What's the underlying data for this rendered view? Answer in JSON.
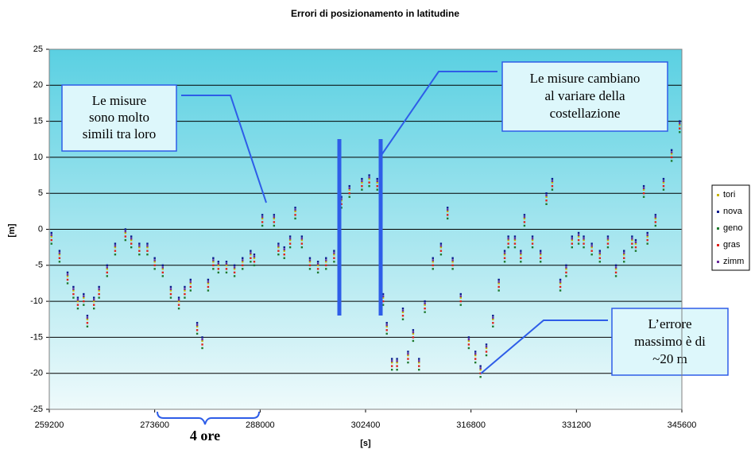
{
  "chart_data": {
    "type": "scatter",
    "title": "Errori di posizionamento in latitudine",
    "x_label": "[s]",
    "y_label": "[m]",
    "xlim": [
      259200,
      345600
    ],
    "xticks": [
      259200,
      273600,
      288000,
      302400,
      316800,
      331200,
      345600
    ],
    "ylim": [
      -25,
      25
    ],
    "yticks": [
      -25,
      -20,
      -15,
      -10,
      -5,
      0,
      5,
      10,
      15,
      20,
      25
    ],
    "grid": true,
    "legend": "right",
    "x": [
      259500,
      260600,
      261700,
      262500,
      263100,
      263900,
      264400,
      265300,
      266000,
      267100,
      268200,
      269600,
      270400,
      271500,
      272600,
      273600,
      274700,
      275800,
      276900,
      277700,
      278500,
      279400,
      280100,
      280900,
      281600,
      282300,
      283400,
      284500,
      285600,
      286700,
      287200,
      288300,
      289900,
      290500,
      291300,
      292100,
      292800,
      293700,
      294800,
      295900,
      297000,
      298100,
      299100,
      300200,
      301900,
      302900,
      304000,
      304800,
      305300,
      306000,
      306700,
      307500,
      308200,
      308900,
      309700,
      310500,
      311600,
      312700,
      313600,
      314300,
      315400,
      316500,
      317400,
      318100,
      318900,
      319800,
      320600,
      321400,
      321900,
      322800,
      323600,
      324100,
      325200,
      326300,
      327100,
      327900,
      329000,
      329800,
      330600,
      331500,
      332200,
      333300,
      334400,
      335500,
      336600,
      337700,
      338800,
      339300,
      340400,
      340900,
      342000,
      343100,
      344200,
      345300
    ],
    "series": [
      {
        "name": "tori",
        "color": "#c8b400",
        "values": [
          -1,
          -3.5,
          -6.5,
          -8.5,
          -10,
          -9.5,
          -12.5,
          -10,
          -8.5,
          -5.5,
          -2.5,
          -0.5,
          -1.5,
          -2.5,
          -2.5,
          -4.5,
          -5.5,
          -8.5,
          -10,
          -8.5,
          -7.5,
          -13.5,
          -15.5,
          -7.5,
          -4.5,
          -5,
          -5,
          -5.5,
          -4.5,
          -3.5,
          -4,
          1.5,
          1.5,
          -2.5,
          -3,
          -1.5,
          2.5,
          -1.5,
          -4.5,
          -5,
          -4.5,
          -3.5,
          4,
          5.5,
          6.5,
          7,
          6.5,
          -9.5,
          -13.5,
          -18.5,
          -18.5,
          -11.5,
          -17.5,
          -14.5,
          -18.5,
          -10.5,
          -4.5,
          -2.5,
          2.5,
          -4.5,
          -9.5,
          -15.5,
          -17.5,
          -19.5,
          -16.5,
          -12.5,
          -7.5,
          -3.5,
          -1.5,
          -1.5,
          -3.5,
          1.5,
          -1.5,
          -3.5,
          4.5,
          6.5,
          -7.5,
          -5.5,
          -1.5,
          -1,
          -1.5,
          -2.5,
          -3.5,
          -1.5,
          -5.5,
          -3.5,
          -1.5,
          -2,
          5.5,
          -1,
          1.5,
          6.5,
          10.5,
          14.5
        ]
      },
      {
        "name": "nova",
        "color": "#0a1a8c",
        "values": [
          -0.5,
          -3,
          -6,
          -8,
          -9.5,
          -9,
          -12,
          -9.5,
          -8,
          -5,
          -2,
          0,
          -1,
          -2,
          -2,
          -4,
          -5,
          -8,
          -9.5,
          -8,
          -7,
          -13,
          -15,
          -7,
          -4,
          -4.5,
          -4.5,
          -5,
          -4,
          -3,
          -3.5,
          2,
          2,
          -2,
          -2.5,
          -1,
          3,
          -1,
          -4,
          -4.5,
          -4,
          -3,
          4.5,
          6,
          7,
          7.5,
          7,
          -9,
          -13,
          -18,
          -18,
          -11,
          -17,
          -14,
          -18,
          -10,
          -4,
          -2,
          3,
          -4,
          -9,
          -15,
          -17,
          -19,
          -16,
          -12,
          -7,
          -3,
          -1,
          -1,
          -3,
          2,
          -1,
          -3,
          5,
          7,
          -7,
          -5,
          -1,
          -0.5,
          -1,
          -2,
          -3,
          -1,
          -5,
          -3,
          -1,
          -1.5,
          6,
          -0.5,
          2,
          7,
          11,
          15
        ]
      },
      {
        "name": "geno",
        "color": "#1f7a2e",
        "values": [
          -2,
          -4.5,
          -7.5,
          -9.5,
          -11,
          -10.5,
          -13.5,
          -11,
          -9.5,
          -6.5,
          -3.5,
          -1.5,
          -2.5,
          -3.5,
          -3.5,
          -5.5,
          -6.5,
          -9.5,
          -11,
          -9.5,
          -8.5,
          -14.5,
          -16.5,
          -8.5,
          -5.5,
          -6,
          -6,
          -6.5,
          -5.5,
          -4.5,
          -5,
          0.5,
          0.5,
          -3.5,
          -4,
          -2.5,
          1.5,
          -2.5,
          -5.5,
          -6,
          -5.5,
          -4.5,
          3,
          4.5,
          5.5,
          6,
          5.5,
          -10.5,
          -14.5,
          -19.5,
          -19.5,
          -12.5,
          -18.5,
          -15.5,
          -19.5,
          -11.5,
          -5.5,
          -3.5,
          1.5,
          -5.5,
          -10.5,
          -16.5,
          -18.5,
          -20.5,
          -17.5,
          -13.5,
          -8.5,
          -4.5,
          -2.5,
          -2.5,
          -4.5,
          0.5,
          -2.5,
          -4.5,
          3.5,
          5.5,
          -8.5,
          -6.5,
          -2.5,
          -2,
          -2.5,
          -3.5,
          -4.5,
          -2.5,
          -6.5,
          -4.5,
          -2.5,
          -3,
          4.5,
          -2,
          0.5,
          5.5,
          9.5,
          13.5
        ]
      },
      {
        "name": "gras",
        "color": "#e0201a",
        "values": [
          -1.5,
          -4,
          -7,
          -9,
          -10.5,
          -10,
          -13,
          -10.5,
          -9,
          -6,
          -3,
          -1,
          -2,
          -3,
          -3,
          -5,
          -6,
          -9,
          -10.5,
          -9,
          -8,
          -14,
          -16,
          -8,
          -5,
          -5.5,
          -5.5,
          -6,
          -5,
          -4,
          -4.5,
          1,
          1,
          -3,
          -3.5,
          -2,
          2,
          -2,
          -5,
          -5.5,
          -5,
          -4,
          3.5,
          5,
          6,
          6.5,
          6,
          -10,
          -14,
          -19,
          -19,
          -12,
          -18,
          -15,
          -19,
          -11,
          -5,
          -3,
          2,
          -5,
          -10,
          -16,
          -18,
          -20,
          -17,
          -13,
          -8,
          -4,
          -2,
          -2,
          -4,
          1,
          -2,
          -4,
          4,
          6,
          -8,
          -6,
          -2,
          -1.5,
          -2,
          -3,
          -4,
          -2,
          -6,
          -4,
          -2,
          -2.5,
          5,
          -1.5,
          1,
          6,
          10,
          14
        ]
      },
      {
        "name": "zimm",
        "color": "#6a2a9a",
        "values": [
          -0.8,
          -3.3,
          -6.3,
          -8.3,
          -9.8,
          -9.3,
          -12.3,
          -9.8,
          -8.3,
          -5.3,
          -2.3,
          -0.3,
          -1.3,
          -2.3,
          -2.3,
          -4.3,
          -5.3,
          -8.3,
          -9.8,
          -8.3,
          -7.3,
          -13.3,
          -15.3,
          -7.3,
          -4.3,
          -4.8,
          -4.8,
          -5.3,
          -4.3,
          -3.3,
          -3.8,
          1.7,
          1.7,
          -2.3,
          -2.8,
          -1.3,
          2.7,
          -1.3,
          -4.3,
          -4.8,
          -4.3,
          -3.3,
          4.2,
          5.7,
          6.7,
          7.2,
          6.7,
          -9.3,
          -13.3,
          -18.3,
          -18.3,
          -11.3,
          -17.3,
          -14.3,
          -18.3,
          -10.3,
          -4.3,
          -2.3,
          2.7,
          -4.3,
          -9.3,
          -15.3,
          -17.3,
          -19.3,
          -16.3,
          -12.3,
          -7.3,
          -3.3,
          -1.3,
          -1.3,
          -3.3,
          1.7,
          -1.3,
          -3.3,
          4.7,
          6.7,
          -7.3,
          -5.3,
          -1.3,
          -0.8,
          -1.3,
          -2.3,
          -3.3,
          -1.3,
          -5.3,
          -3.3,
          -1.3,
          -1.8,
          5.7,
          -0.8,
          1.7,
          6.7,
          10.7,
          14.7
        ]
      }
    ],
    "annotations": [
      {
        "lines": [
          "Le misure",
          "sono molto",
          "simili tra loro"
        ]
      },
      {
        "lines": [
          "Le misure cambiano",
          "al variare della",
          "costellazione"
        ]
      },
      {
        "lines": [
          "L’errore",
          "massimo è di",
          "~20 m"
        ]
      },
      {
        "lines": [
          "4 ore"
        ]
      }
    ]
  }
}
